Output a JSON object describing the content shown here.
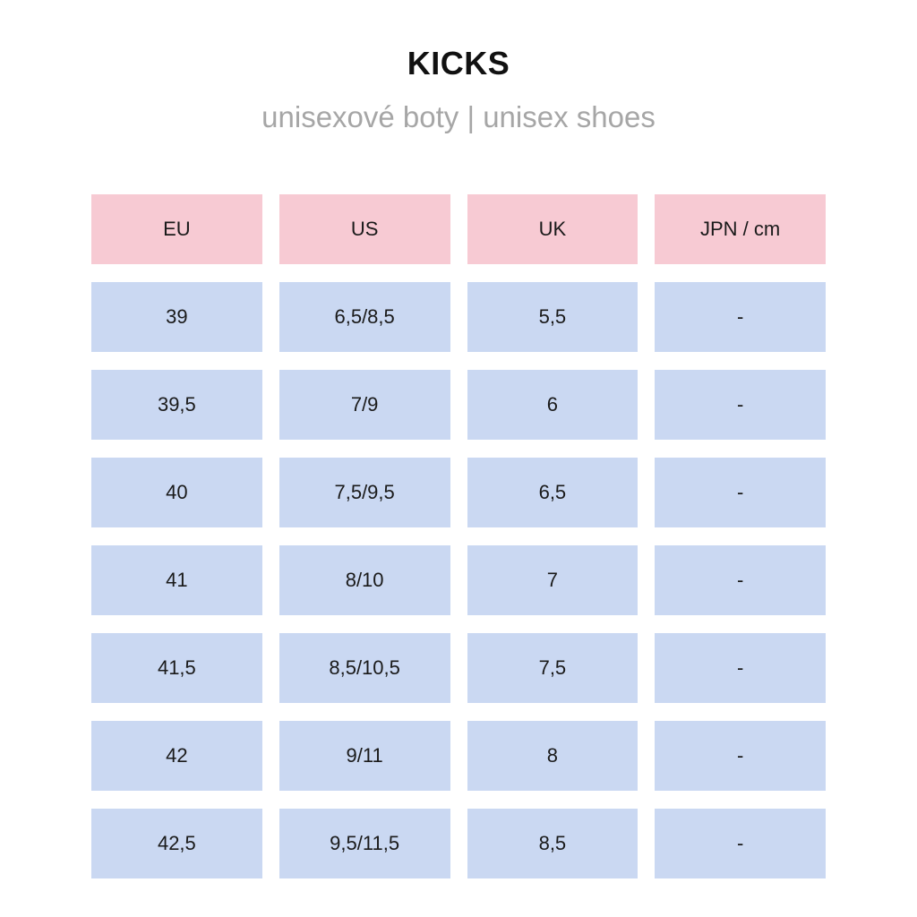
{
  "header": {
    "title": "KICKS",
    "subtitle": "unisexové boty | unisex shoes"
  },
  "colors": {
    "header_cell": "#f7cad3",
    "body_cell": "#cad8f2",
    "subtitle": "#a6a6a6"
  },
  "table": {
    "columns": [
      "EU",
      "US",
      "UK",
      "JPN / cm"
    ],
    "rows": [
      [
        "39",
        "6,5/8,5",
        "5,5",
        "-"
      ],
      [
        "39,5",
        "7/9",
        "6",
        "-"
      ],
      [
        "40",
        "7,5/9,5",
        "6,5",
        "-"
      ],
      [
        "41",
        "8/10",
        "7",
        "-"
      ],
      [
        "41,5",
        "8,5/10,5",
        "7,5",
        "-"
      ],
      [
        "42",
        "9/11",
        "8",
        "-"
      ],
      [
        "42,5",
        "9,5/11,5",
        "8,5",
        "-"
      ]
    ]
  }
}
